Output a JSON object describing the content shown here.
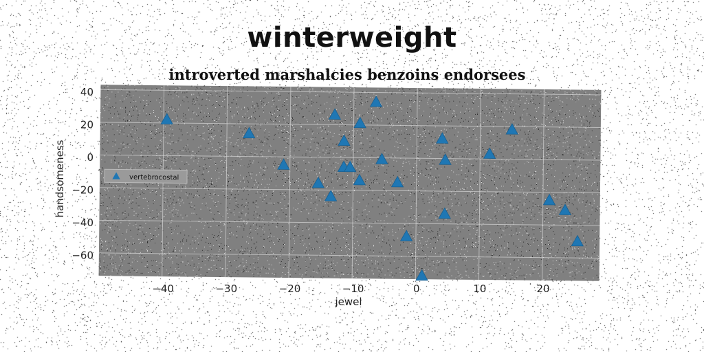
{
  "title": "winterweight",
  "subtitle": "introverted marshalcies benzoins endorsees",
  "chart_data": {
    "type": "scatter",
    "xlabel": "jewel",
    "ylabel": "handsomeness",
    "xlim": [
      -50,
      29
    ],
    "ylim": [
      -74,
      43
    ],
    "xticks": [
      -40,
      -30,
      -20,
      -10,
      0,
      10,
      20
    ],
    "yticks": [
      -60,
      -40,
      -20,
      0,
      20,
      40
    ],
    "grid": true,
    "legend_position": "center-left",
    "series": [
      {
        "name": "vertebrocostal",
        "marker": "triangle",
        "color": "#1f77b4",
        "points": [
          [
            -39.5,
            22
          ],
          [
            -26.5,
            14
          ],
          [
            -21,
            -5
          ],
          [
            -15.5,
            -16
          ],
          [
            -13.5,
            -24
          ],
          [
            -13,
            26
          ],
          [
            -11.5,
            10
          ],
          [
            -11.5,
            -6
          ],
          [
            -10.5,
            -6
          ],
          [
            -9,
            21
          ],
          [
            -9,
            -14
          ],
          [
            -6.5,
            34
          ],
          [
            -5.5,
            -1
          ],
          [
            -3,
            -15
          ],
          [
            -1.5,
            -48
          ],
          [
            1,
            -72
          ],
          [
            4,
            12
          ],
          [
            4.5,
            -1
          ],
          [
            4.5,
            -34
          ],
          [
            11.5,
            3
          ],
          [
            15,
            18
          ],
          [
            21,
            -25
          ],
          [
            23.5,
            -31
          ],
          [
            25.5,
            -50
          ]
        ]
      }
    ]
  },
  "colors": {
    "plot_background": "#808080",
    "marker": "#1f77b4",
    "grid": "#d8d8d8"
  }
}
